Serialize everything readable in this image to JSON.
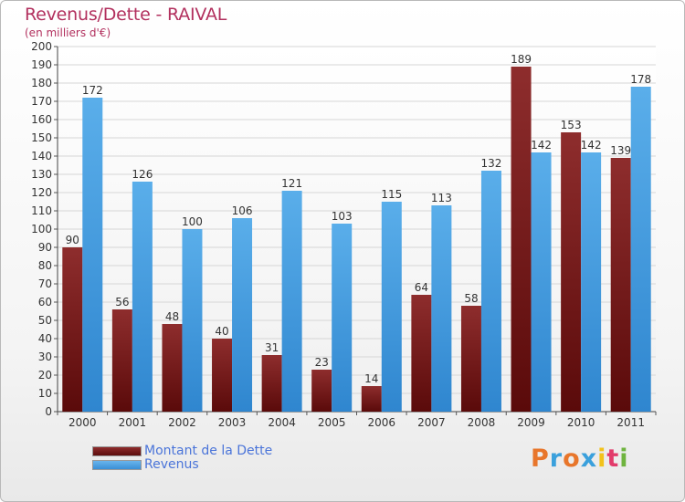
{
  "header": {
    "title": "Revenus/Dette - RAIVAL",
    "subtitle": "(en milliers d'€)"
  },
  "legend": {
    "dette_label": "Montant de la Dette",
    "revenus_label": "Revenus"
  },
  "brand": {
    "letters": [
      "P",
      "r",
      "o",
      "x",
      "i",
      "t",
      "i"
    ],
    "colors": [
      "#e8762b",
      "#3aa0dc",
      "#e8762b",
      "#3aa0dc",
      "#f2c21b",
      "#e23c6b",
      "#6fb43f"
    ]
  },
  "colors": {
    "dette": "#7a1c1c",
    "revenus": "#4fa3e6",
    "title": "#b2305e"
  },
  "chart_data": {
    "type": "bar",
    "categories": [
      "2000",
      "2001",
      "2002",
      "2003",
      "2004",
      "2005",
      "2006",
      "2007",
      "2008",
      "2009",
      "2010",
      "2011"
    ],
    "series": [
      {
        "name": "Montant de la Dette",
        "values": [
          90,
          56,
          48,
          40,
          31,
          23,
          14,
          64,
          58,
          189,
          153,
          139
        ]
      },
      {
        "name": "Revenus",
        "values": [
          172,
          126,
          100,
          106,
          121,
          103,
          115,
          113,
          132,
          142,
          142,
          178
        ]
      }
    ],
    "title": "Revenus/Dette - RAIVAL",
    "subtitle": "(en milliers d'€)",
    "ylim": [
      0,
      200
    ],
    "yticks": [
      0,
      10,
      20,
      30,
      40,
      50,
      60,
      70,
      80,
      90,
      100,
      110,
      120,
      130,
      140,
      150,
      160,
      170,
      180,
      190,
      200
    ],
    "grid": true,
    "legend_position": "bottom-left"
  }
}
